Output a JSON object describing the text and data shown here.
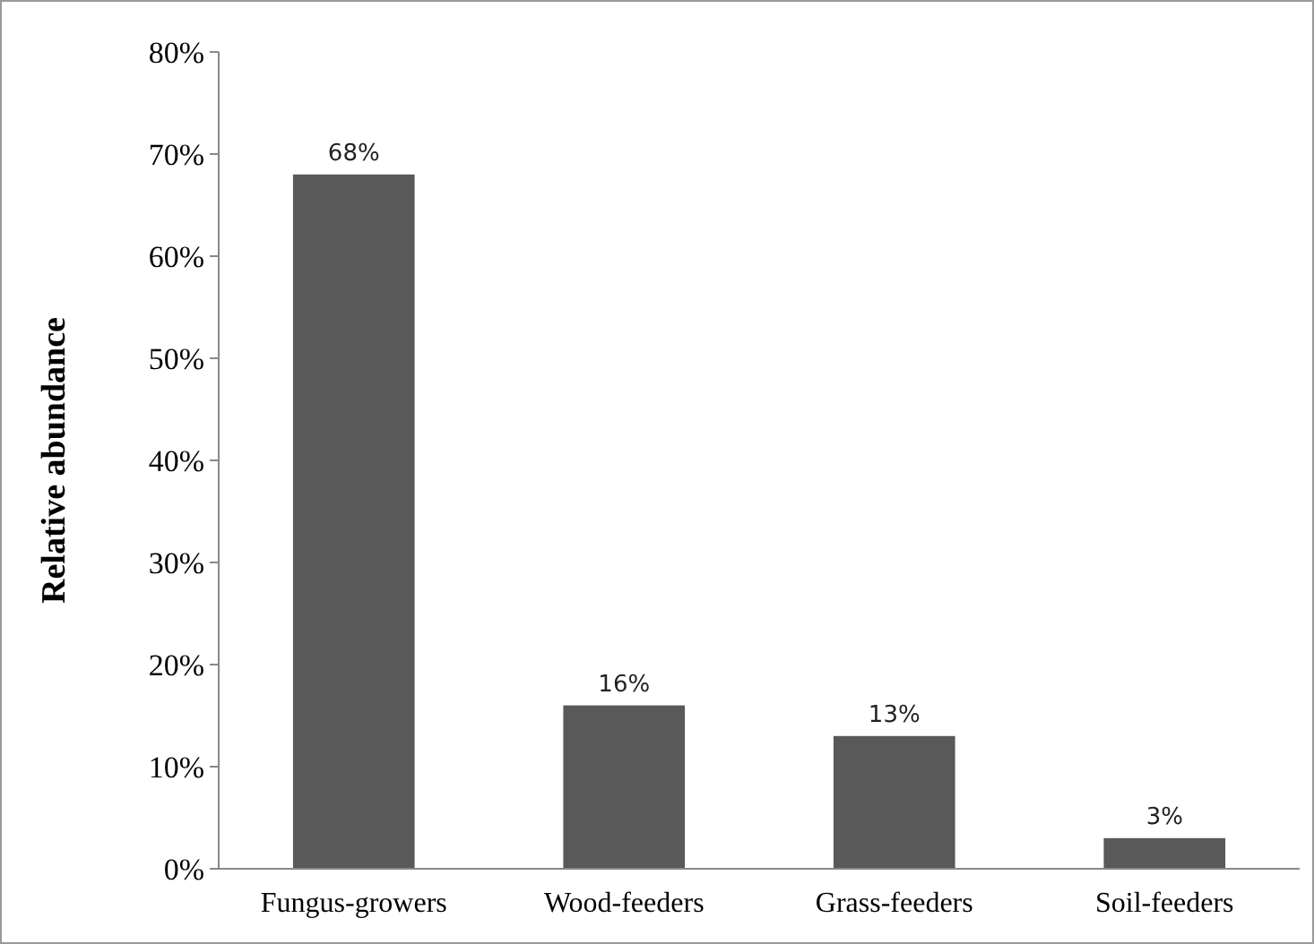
{
  "chart_data": {
    "type": "bar",
    "ylabel": "Relative abundance",
    "categories": [
      "Fungus-growers",
      "Wood-feeders",
      "Grass-feeders",
      "Soil-feeders"
    ],
    "values": [
      68,
      16,
      13,
      3
    ],
    "color": "#595959",
    "value_labels": [
      "68%",
      "16%",
      "13%",
      "3%"
    ],
    "ylim": [
      0,
      80
    ],
    "yticks": [
      {
        "value": 0,
        "label": "0%"
      },
      {
        "value": 10,
        "label": "10%"
      },
      {
        "value": 20,
        "label": "20%"
      },
      {
        "value": 30,
        "label": "30%"
      },
      {
        "value": 40,
        "label": "40%"
      },
      {
        "value": 50,
        "label": "50%"
      },
      {
        "value": 60,
        "label": "60%"
      },
      {
        "value": 70,
        "label": "70%"
      },
      {
        "value": 80,
        "label": "80%"
      }
    ],
    "grid": false
  }
}
